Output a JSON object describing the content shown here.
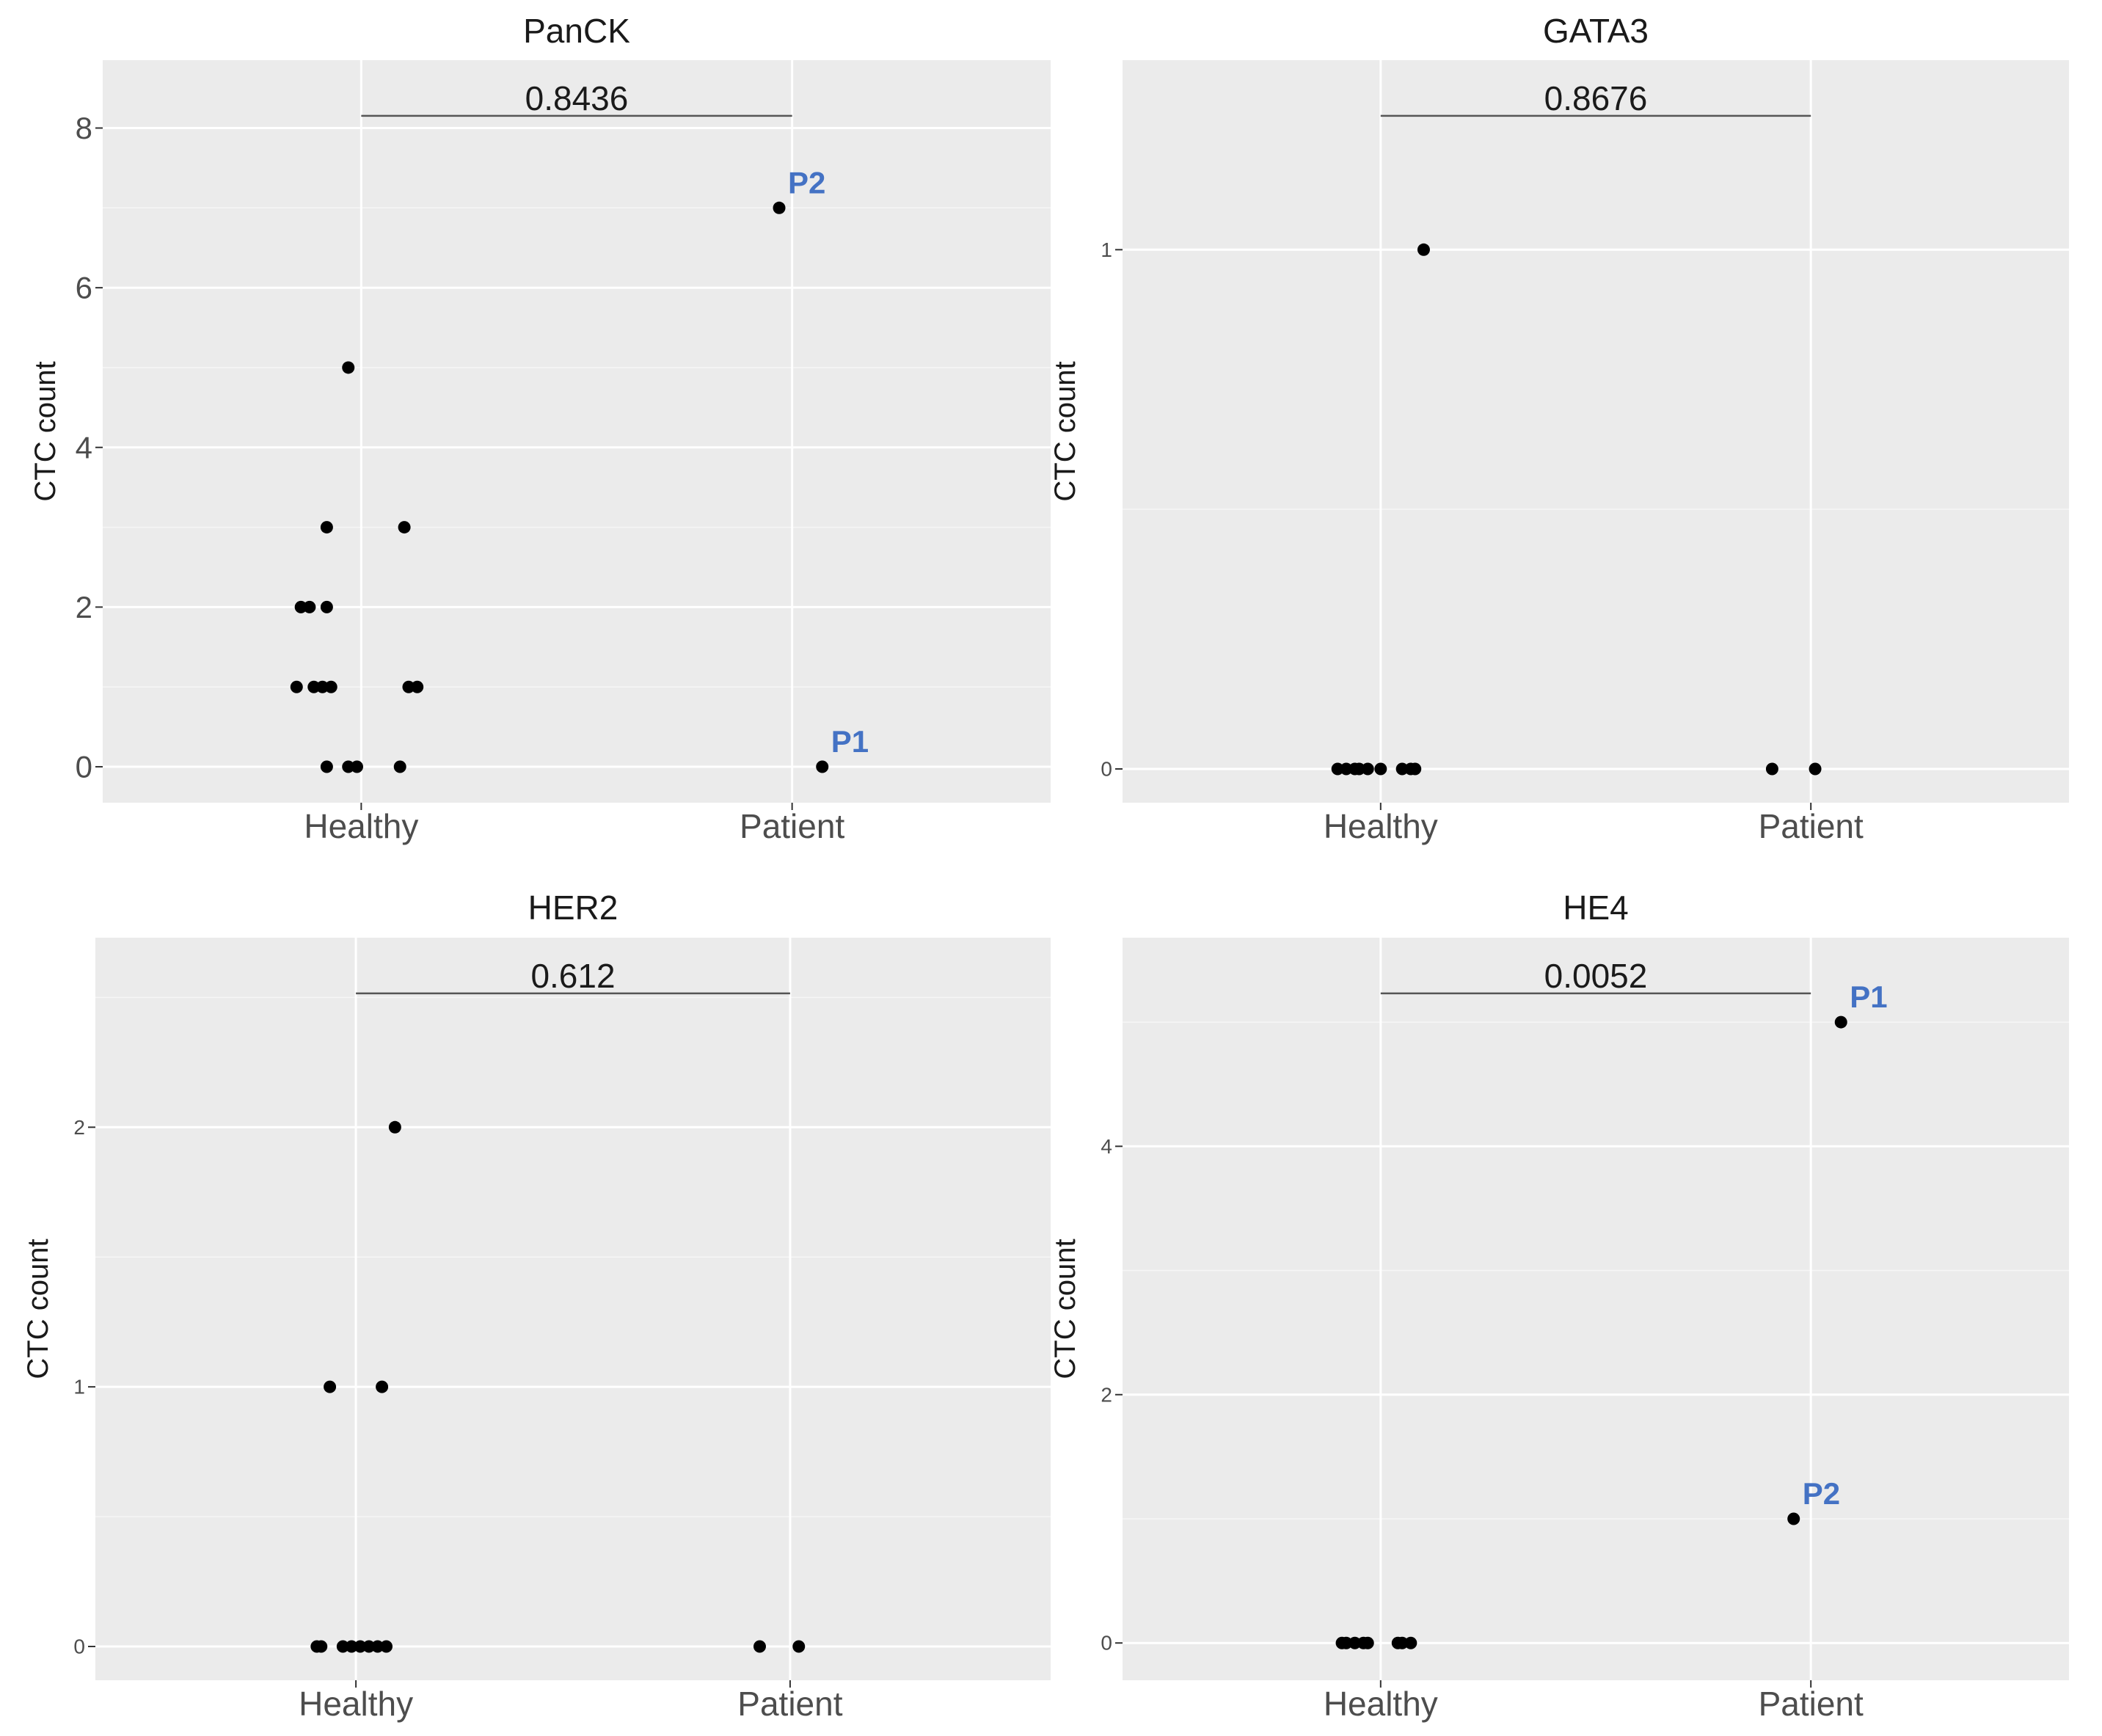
{
  "chart_data": [
    {
      "type": "scatter",
      "title": "PanCK",
      "ylabel": "CTC count",
      "categories": [
        "Healthy",
        "Patient"
      ],
      "ylim": [
        -0.45,
        8.85
      ],
      "yticks": [
        0,
        2,
        4,
        6,
        8
      ],
      "p_value": "0.8436",
      "points": [
        {
          "group": "Healthy",
          "y": 5,
          "jitter": -0.03
        },
        {
          "group": "Healthy",
          "y": 3,
          "jitter": -0.08
        },
        {
          "group": "Healthy",
          "y": 3,
          "jitter": 0.1
        },
        {
          "group": "Healthy",
          "y": 2,
          "jitter": -0.14
        },
        {
          "group": "Healthy",
          "y": 2,
          "jitter": -0.12
        },
        {
          "group": "Healthy",
          "y": 2,
          "jitter": -0.08
        },
        {
          "group": "Healthy",
          "y": 1,
          "jitter": -0.15
        },
        {
          "group": "Healthy",
          "y": 1,
          "jitter": -0.11
        },
        {
          "group": "Healthy",
          "y": 1,
          "jitter": -0.09
        },
        {
          "group": "Healthy",
          "y": 1,
          "jitter": -0.07
        },
        {
          "group": "Healthy",
          "y": 1,
          "jitter": 0.11
        },
        {
          "group": "Healthy",
          "y": 1,
          "jitter": 0.13
        },
        {
          "group": "Healthy",
          "y": 0,
          "jitter": -0.08
        },
        {
          "group": "Healthy",
          "y": 0,
          "jitter": -0.03
        },
        {
          "group": "Healthy",
          "y": 0,
          "jitter": -0.01
        },
        {
          "group": "Healthy",
          "y": 0,
          "jitter": 0.09
        },
        {
          "group": "Patient",
          "y": 7,
          "jitter": -0.03,
          "label": "P2"
        },
        {
          "group": "Patient",
          "y": 0,
          "jitter": 0.07,
          "label": "P1"
        }
      ]
    },
    {
      "type": "scatter",
      "title": "GATA3",
      "ylabel": "CTC count",
      "categories": [
        "Healthy",
        "Patient"
      ],
      "ylim": [
        -0.065,
        1.365
      ],
      "yticks": [
        0,
        1
      ],
      "p_value": "0.8676",
      "points": [
        {
          "group": "Healthy",
          "y": 1,
          "jitter": 0.1
        },
        {
          "group": "Healthy",
          "y": 0,
          "jitter": -0.1
        },
        {
          "group": "Healthy",
          "y": 0,
          "jitter": -0.08
        },
        {
          "group": "Healthy",
          "y": 0,
          "jitter": -0.06
        },
        {
          "group": "Healthy",
          "y": 0,
          "jitter": -0.05
        },
        {
          "group": "Healthy",
          "y": 0,
          "jitter": -0.03
        },
        {
          "group": "Healthy",
          "y": 0,
          "jitter": 0.0
        },
        {
          "group": "Healthy",
          "y": 0,
          "jitter": 0.05
        },
        {
          "group": "Healthy",
          "y": 0,
          "jitter": 0.07
        },
        {
          "group": "Healthy",
          "y": 0,
          "jitter": 0.08
        },
        {
          "group": "Patient",
          "y": 0,
          "jitter": -0.09
        },
        {
          "group": "Patient",
          "y": 0,
          "jitter": 0.01
        }
      ]
    },
    {
      "type": "scatter",
      "title": "HER2",
      "ylabel": "CTC count",
      "categories": [
        "Healthy",
        "Patient"
      ],
      "ylim": [
        -0.13,
        2.73
      ],
      "yticks": [
        0,
        1,
        2
      ],
      "p_value": "0.612",
      "points": [
        {
          "group": "Healthy",
          "y": 2,
          "jitter": 0.09
        },
        {
          "group": "Healthy",
          "y": 1,
          "jitter": -0.06
        },
        {
          "group": "Healthy",
          "y": 1,
          "jitter": 0.06
        },
        {
          "group": "Healthy",
          "y": 0,
          "jitter": -0.09
        },
        {
          "group": "Healthy",
          "y": 0,
          "jitter": -0.08
        },
        {
          "group": "Healthy",
          "y": 0,
          "jitter": -0.03
        },
        {
          "group": "Healthy",
          "y": 0,
          "jitter": -0.01
        },
        {
          "group": "Healthy",
          "y": 0,
          "jitter": 0.01
        },
        {
          "group": "Healthy",
          "y": 0,
          "jitter": 0.03
        },
        {
          "group": "Healthy",
          "y": 0,
          "jitter": 0.05
        },
        {
          "group": "Healthy",
          "y": 0,
          "jitter": 0.07
        },
        {
          "group": "Patient",
          "y": 0,
          "jitter": -0.07
        },
        {
          "group": "Patient",
          "y": 0,
          "jitter": 0.02
        }
      ]
    },
    {
      "type": "scatter",
      "title": "HE4",
      "ylabel": "CTC count",
      "categories": [
        "Healthy",
        "Patient"
      ],
      "ylim": [
        -0.3,
        5.68
      ],
      "yticks": [
        0,
        2,
        4
      ],
      "p_value": "0.0052",
      "points": [
        {
          "group": "Healthy",
          "y": 0,
          "jitter": -0.09
        },
        {
          "group": "Healthy",
          "y": 0,
          "jitter": -0.08
        },
        {
          "group": "Healthy",
          "y": 0,
          "jitter": -0.06
        },
        {
          "group": "Healthy",
          "y": 0,
          "jitter": -0.04
        },
        {
          "group": "Healthy",
          "y": 0,
          "jitter": -0.03
        },
        {
          "group": "Healthy",
          "y": 0,
          "jitter": 0.04
        },
        {
          "group": "Healthy",
          "y": 0,
          "jitter": 0.05
        },
        {
          "group": "Healthy",
          "y": 0,
          "jitter": 0.07
        },
        {
          "group": "Patient",
          "y": 5,
          "jitter": 0.07,
          "label": "P1"
        },
        {
          "group": "Patient",
          "y": 1,
          "jitter": -0.04,
          "label": "P2"
        }
      ]
    }
  ],
  "colors": {
    "panel_bg": "#ebebeb",
    "grid": "#ffffff",
    "point": "#000000",
    "patient_label": "#4472c4",
    "text": "#1a1a1a",
    "tick_text": "#4d4d4d"
  }
}
